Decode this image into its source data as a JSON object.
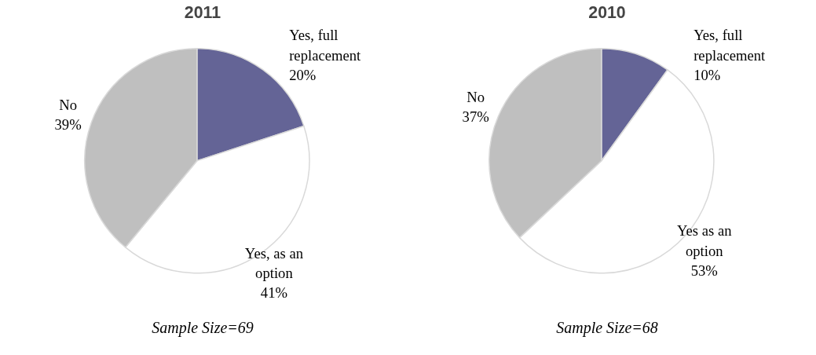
{
  "chart_data": [
    {
      "type": "pie",
      "title": "2011",
      "categories": [
        "Yes, full replacement",
        "Yes, as an option",
        "No"
      ],
      "values": [
        20,
        41,
        39
      ],
      "value_labels": [
        "20%",
        "41%",
        "39%"
      ],
      "colors": [
        "#646496",
        "#ffffff",
        "#bfbfbf"
      ],
      "annotations": [
        "Sample Size=69"
      ]
    },
    {
      "type": "pie",
      "title": "2010",
      "categories": [
        "Yes, full replacement",
        "Yes as an option",
        "No"
      ],
      "values": [
        10,
        53,
        37
      ],
      "value_labels": [
        "10%",
        "53%",
        "37%"
      ],
      "colors": [
        "#646496",
        "#ffffff",
        "#bfbfbf"
      ],
      "annotations": [
        "Sample Size=68"
      ]
    }
  ]
}
